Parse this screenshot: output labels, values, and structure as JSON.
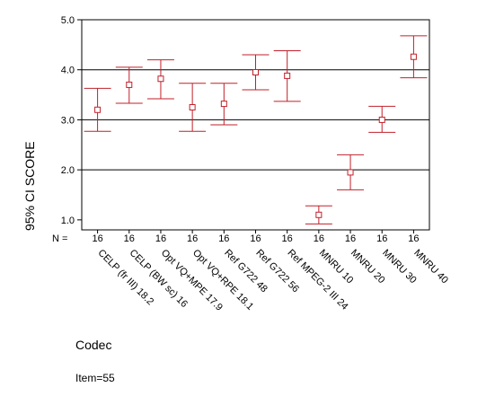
{
  "chart_data": {
    "type": "errorbar",
    "ylabel": "95% CI SCORE",
    "xlabel": "Codec",
    "n_label": "N =",
    "ylim": [
      0.8,
      5.0
    ],
    "yticks": [
      "1.0",
      "2.0",
      "3.0",
      "4.0",
      "5.0"
    ],
    "grid_lines": [
      2.0,
      3.0,
      4.0
    ],
    "color": "#c0202a",
    "categories": [
      "CELP (fr III) 18.2",
      "CELP (BW sc) 16",
      "Opt VQ+MPE 17.9",
      "Opt VQ+RPE 18.1",
      "Ref G722 48",
      "Ref G722 56",
      "Ref MPEG-2 III 24",
      "MNRU 10",
      "MNRU 20",
      "MNRU 30",
      "MNRU 40"
    ],
    "n": [
      "16",
      "16",
      "16",
      "16",
      "16",
      "16",
      "16",
      "16",
      "16",
      "16",
      "16"
    ],
    "mean": [
      3.2,
      3.7,
      3.82,
      3.25,
      3.32,
      3.95,
      3.88,
      1.1,
      1.95,
      3.0,
      4.26
    ],
    "lower": [
      2.77,
      3.33,
      3.42,
      2.77,
      2.9,
      3.6,
      3.37,
      0.92,
      1.6,
      2.75,
      3.84
    ],
    "upper": [
      3.63,
      4.05,
      4.2,
      3.73,
      3.73,
      4.3,
      4.38,
      1.28,
      2.3,
      3.27,
      4.68
    ]
  },
  "footnote": "Item=55"
}
